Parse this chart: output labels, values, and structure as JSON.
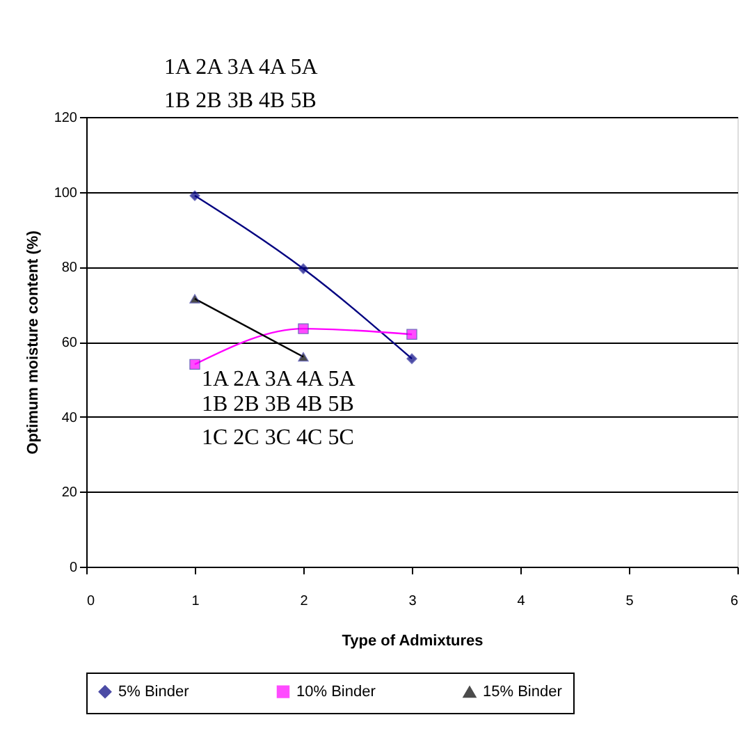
{
  "chart_data": {
    "type": "line",
    "xlabel": "Type of Admixtures",
    "ylabel": "Optimum moisture content (%)",
    "x": [
      1,
      2,
      3
    ],
    "series": [
      {
        "name": "5% Binder",
        "color": "#000080",
        "marker": "diamond",
        "values": [
          99,
          79.5,
          55.5
        ]
      },
      {
        "name": "10% Binder",
        "color": "#ff00ff",
        "marker": "square",
        "values": [
          54,
          63.5,
          62
        ]
      },
      {
        "name": "15% Binder",
        "color": "#000000",
        "marker": "triangle",
        "values": [
          71.5,
          56,
          null
        ]
      }
    ],
    "xlim": [
      0,
      6
    ],
    "xticks": [
      0,
      1,
      2,
      3,
      4,
      5,
      6
    ],
    "ylim": [
      0,
      120
    ],
    "yticks": [
      0,
      20,
      40,
      60,
      80,
      100,
      120
    ],
    "grid": "y",
    "legend": "bottom",
    "annotations": [
      "1A 2A 3A 4A 5A\n1B 2B 3B 4B 5B",
      "1A 2A 3A 4A 5A\n1B 2B 3B 4B 5B\n1C 2C 3C 4C 5C"
    ]
  }
}
